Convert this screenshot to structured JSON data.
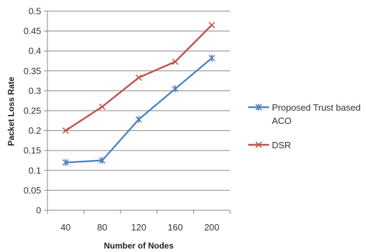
{
  "chart_data": {
    "type": "line",
    "xlabel": "Number of Nodes",
    "ylabel": "Packet Loss  Rate",
    "categories": [
      "40",
      "80",
      "120",
      "160",
      "200"
    ],
    "ylim": [
      0,
      0.5
    ],
    "yticks": [
      "0",
      "0.05",
      "0.1",
      "0.15",
      "0.2",
      "0.25",
      "0.3",
      "0.35",
      "0.4",
      "0.45",
      "0.5"
    ],
    "grid": true,
    "legend_position": "right",
    "series": [
      {
        "name": "Proposed Trust based ACO",
        "legend_lines": [
          "Proposed Trust based",
          "ACO"
        ],
        "color": "#4F81BD",
        "marker": "asterisk",
        "values": [
          0.12,
          0.125,
          0.228,
          0.305,
          0.382
        ]
      },
      {
        "name": "DSR",
        "legend_lines": [
          "DSR"
        ],
        "color": "#C0504D",
        "marker": "x",
        "values": [
          0.2,
          0.26,
          0.333,
          0.373,
          0.465
        ]
      }
    ]
  }
}
